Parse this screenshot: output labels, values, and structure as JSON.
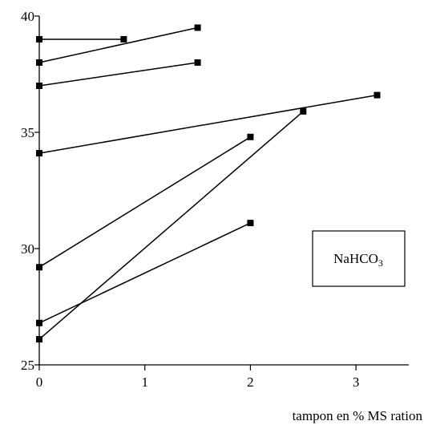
{
  "chart_data": {
    "type": "line",
    "title": "",
    "xlabel": "tampon en % MS ration",
    "ylabel": "",
    "xlim": [
      0,
      3.5
    ],
    "ylim": [
      25,
      40
    ],
    "x_ticks": [
      "0",
      "1",
      "2",
      "3"
    ],
    "y_ticks": [
      "25",
      "30",
      "35",
      "40"
    ],
    "annotation": "NaHCO3",
    "series": [
      {
        "x": [
          0,
          0.8
        ],
        "y": [
          39.0,
          39.0
        ]
      },
      {
        "x": [
          0,
          1.5
        ],
        "y": [
          38.0,
          39.5
        ]
      },
      {
        "x": [
          0,
          1.5
        ],
        "y": [
          37.0,
          38.0
        ]
      },
      {
        "x": [
          0,
          3.2
        ],
        "y": [
          34.1,
          36.6
        ]
      },
      {
        "x": [
          0,
          2.0
        ],
        "y": [
          29.2,
          34.8
        ]
      },
      {
        "x": [
          0,
          2.0
        ],
        "y": [
          26.8,
          31.1
        ]
      },
      {
        "x": [
          0,
          2.5
        ],
        "y": [
          26.1,
          35.9
        ]
      }
    ],
    "colors": {
      "line": "#000000",
      "marker": "#000000"
    }
  }
}
